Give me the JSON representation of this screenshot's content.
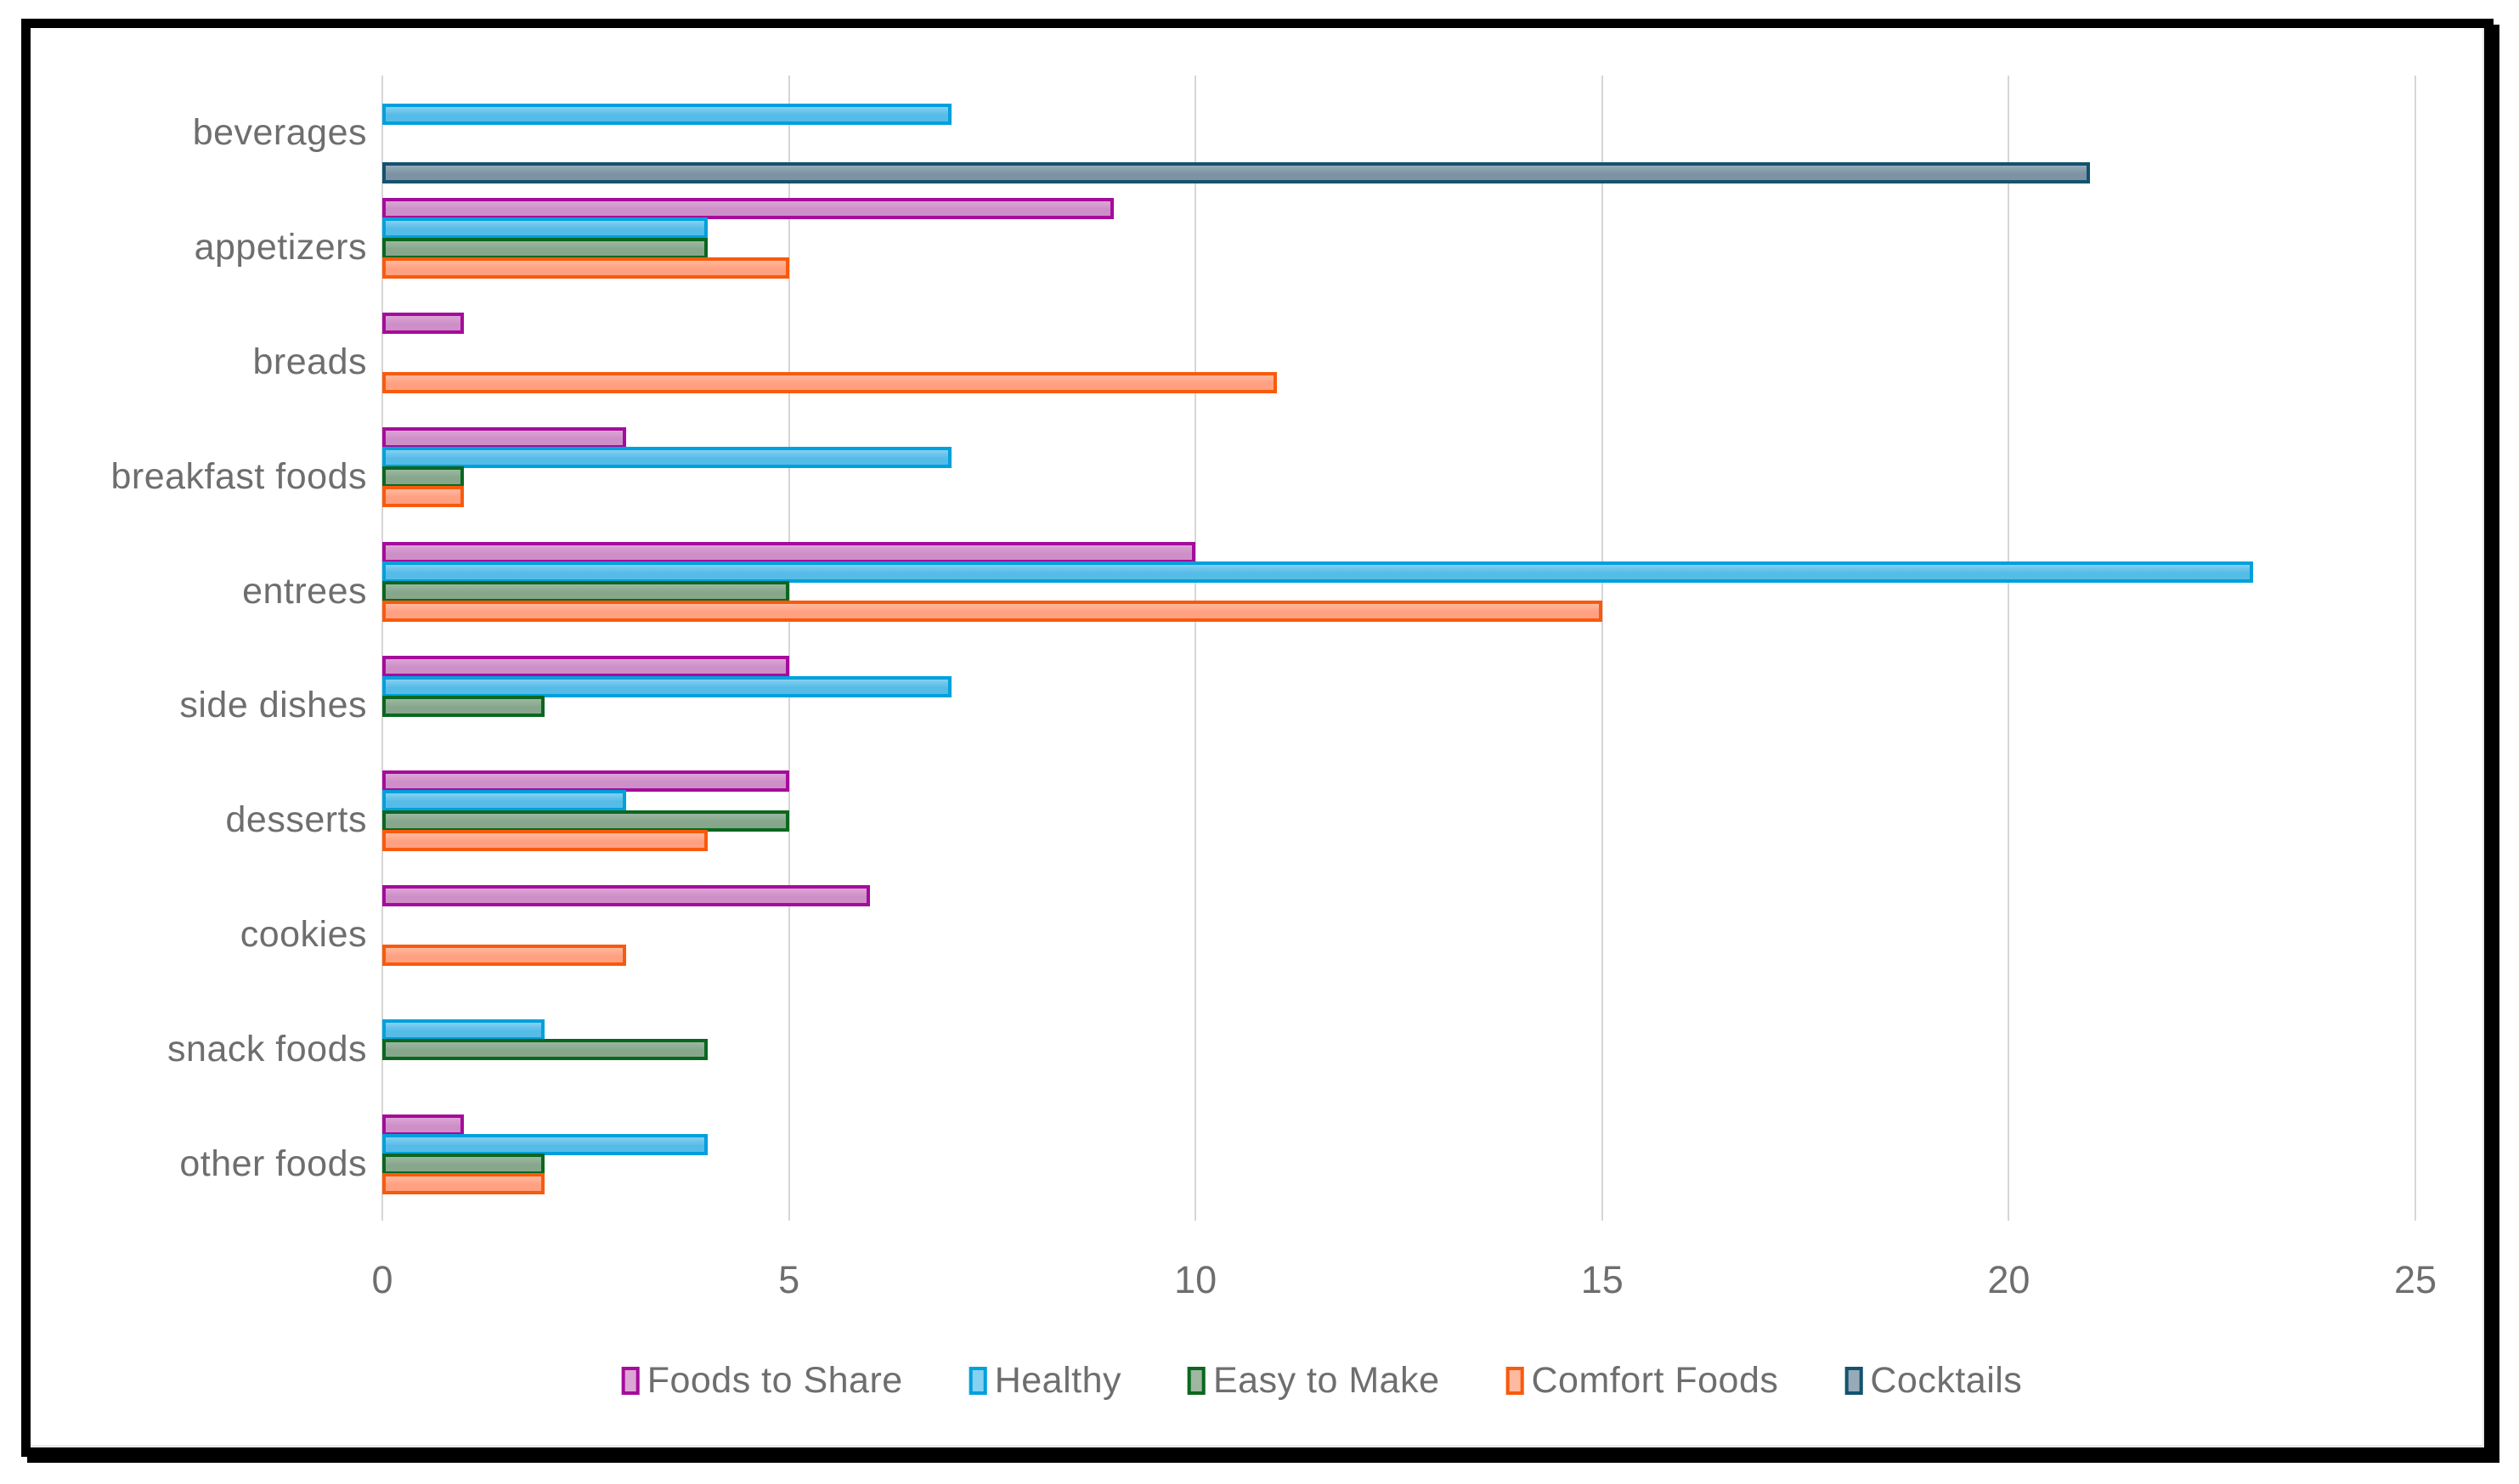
{
  "frame": {
    "background": "#FFFFFF",
    "border_color": "#000000"
  },
  "chart_data": {
    "type": "bar",
    "orientation": "horizontal",
    "title": "",
    "xlabel": "",
    "ylabel": "",
    "categories": [
      "beverages",
      "appetizers",
      "breads",
      "breakfast foods",
      "entrees",
      "side dishes",
      "desserts",
      "cookies",
      "snack foods",
      "other foods"
    ],
    "series": [
      {
        "name": "Foods to Share",
        "border": "#A50C9B",
        "fill": "#CE8FC8",
        "fill_light": "#DCA5D5",
        "values": [
          0,
          9,
          1,
          3,
          10,
          5,
          5,
          6,
          0,
          1
        ]
      },
      {
        "name": "Healthy",
        "border": "#00A0DC",
        "fill": "#55BCE8",
        "fill_light": "#86D0F1",
        "values": [
          7,
          4,
          0,
          7,
          23,
          7,
          3,
          0,
          2,
          4
        ]
      },
      {
        "name": "Easy to Make",
        "border": "#0B671F",
        "fill": "#86A78C",
        "fill_light": "#9DB7A1",
        "values": [
          0,
          4,
          0,
          1,
          5,
          2,
          5,
          0,
          4,
          2
        ]
      },
      {
        "name": "Comfort Foods",
        "border": "#F85A0D",
        "fill": "#FFA080",
        "fill_light": "#FFB9A0",
        "values": [
          0,
          5,
          11,
          1,
          15,
          0,
          4,
          3,
          0,
          2
        ]
      },
      {
        "name": "Cocktails",
        "border": "#12536E",
        "fill": "#7D93A3",
        "fill_light": "#97AAB8",
        "values": [
          21,
          0,
          0,
          0,
          0,
          0,
          0,
          0,
          0,
          0
        ]
      }
    ],
    "x_ticks": [
      "0",
      "5",
      "10",
      "15",
      "20",
      "25"
    ],
    "xlim": [
      0,
      25
    ],
    "grid": "vertical",
    "grid_color": "#D6D6D6",
    "text_color": "#6E6E6E",
    "legend_position": "bottom"
  }
}
